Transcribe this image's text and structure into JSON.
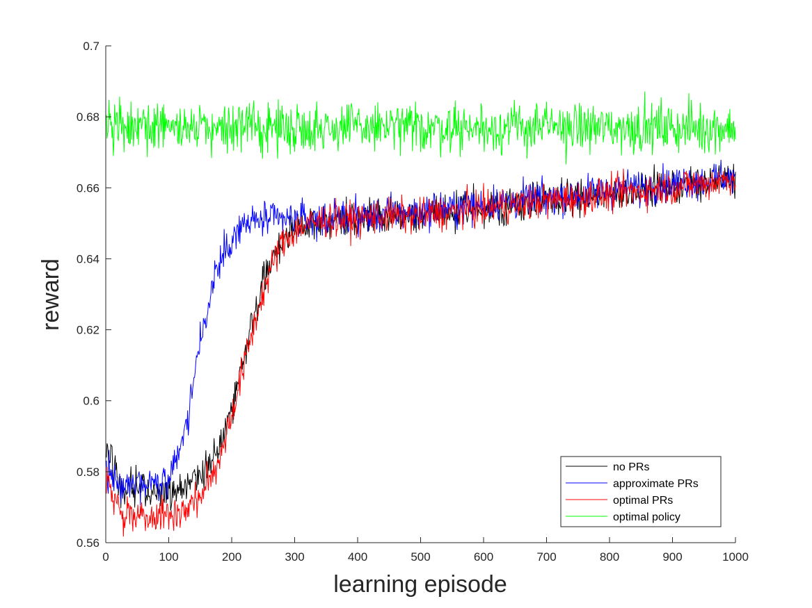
{
  "chart_data": {
    "type": "line",
    "title": "",
    "xlabel": "learning episode",
    "ylabel": "reward",
    "xlim": [
      0,
      1000
    ],
    "ylim": [
      0.56,
      0.7
    ],
    "xticks": [
      0,
      100,
      200,
      300,
      400,
      500,
      600,
      700,
      800,
      900,
      1000
    ],
    "yticks": [
      0.56,
      0.58,
      0.6,
      0.62,
      0.64,
      0.66,
      0.68,
      0.7
    ],
    "xtick_labels": [
      "0",
      "100",
      "200",
      "300",
      "400",
      "500",
      "600",
      "700",
      "800",
      "900",
      "1000"
    ],
    "ytick_labels": [
      "0.56",
      "0.58",
      "0.6",
      "0.62",
      "0.64",
      "0.66",
      "0.68",
      "0.7"
    ],
    "grid": false,
    "legend_position": "bottom-right",
    "series": [
      {
        "name": "no PRs",
        "color": "#000000",
        "x": [
          0,
          25,
          50,
          75,
          100,
          125,
          150,
          175,
          200,
          225,
          250,
          275,
          300,
          325,
          350,
          375,
          400,
          425,
          450,
          475,
          500,
          525,
          550,
          575,
          600,
          625,
          650,
          675,
          700,
          725,
          750,
          775,
          800,
          825,
          850,
          875,
          900,
          925,
          950,
          975,
          1000
        ],
        "y": [
          0.588,
          0.574,
          0.575,
          0.574,
          0.575,
          0.576,
          0.579,
          0.585,
          0.598,
          0.616,
          0.634,
          0.644,
          0.649,
          0.65,
          0.651,
          0.651,
          0.651,
          0.652,
          0.652,
          0.652,
          0.652,
          0.653,
          0.653,
          0.654,
          0.654,
          0.655,
          0.655,
          0.656,
          0.656,
          0.657,
          0.657,
          0.658,
          0.658,
          0.659,
          0.659,
          0.66,
          0.66,
          0.661,
          0.661,
          0.662,
          0.662
        ],
        "noise": 0.0025
      },
      {
        "name": "approximate PRs",
        "color": "#0000ff",
        "x": [
          0,
          25,
          50,
          75,
          100,
          125,
          150,
          175,
          200,
          225,
          250,
          275,
          300,
          325,
          350,
          375,
          400,
          425,
          450,
          475,
          500,
          525,
          550,
          575,
          600,
          625,
          650,
          675,
          700,
          725,
          750,
          775,
          800,
          825,
          850,
          875,
          900,
          925,
          950,
          975,
          1000
        ],
        "y": [
          0.58,
          0.576,
          0.577,
          0.577,
          0.577,
          0.59,
          0.617,
          0.636,
          0.646,
          0.65,
          0.651,
          0.651,
          0.651,
          0.651,
          0.651,
          0.652,
          0.652,
          0.652,
          0.653,
          0.653,
          0.653,
          0.654,
          0.654,
          0.655,
          0.655,
          0.656,
          0.656,
          0.657,
          0.657,
          0.658,
          0.658,
          0.659,
          0.659,
          0.66,
          0.66,
          0.661,
          0.661,
          0.662,
          0.662,
          0.663,
          0.663
        ],
        "noise": 0.0025
      },
      {
        "name": "optimal PRs",
        "color": "#ff0000",
        "x": [
          0,
          25,
          50,
          75,
          100,
          125,
          150,
          175,
          200,
          225,
          250,
          275,
          300,
          325,
          350,
          375,
          400,
          425,
          450,
          475,
          500,
          525,
          550,
          575,
          600,
          625,
          650,
          675,
          700,
          725,
          750,
          775,
          800,
          825,
          850,
          875,
          900,
          925,
          950,
          975,
          1000
        ],
        "y": [
          0.578,
          0.569,
          0.568,
          0.568,
          0.568,
          0.569,
          0.573,
          0.581,
          0.596,
          0.614,
          0.631,
          0.643,
          0.648,
          0.65,
          0.651,
          0.651,
          0.651,
          0.652,
          0.652,
          0.652,
          0.652,
          0.653,
          0.653,
          0.654,
          0.654,
          0.655,
          0.655,
          0.656,
          0.656,
          0.657,
          0.657,
          0.658,
          0.658,
          0.659,
          0.659,
          0.66,
          0.66,
          0.661,
          0.661,
          0.662,
          0.663
        ],
        "noise": 0.0025
      },
      {
        "name": "optimal policy",
        "color": "#00ff00",
        "x": [
          0,
          1000
        ],
        "y": [
          0.677,
          0.677
        ],
        "noise": 0.0035
      }
    ]
  }
}
